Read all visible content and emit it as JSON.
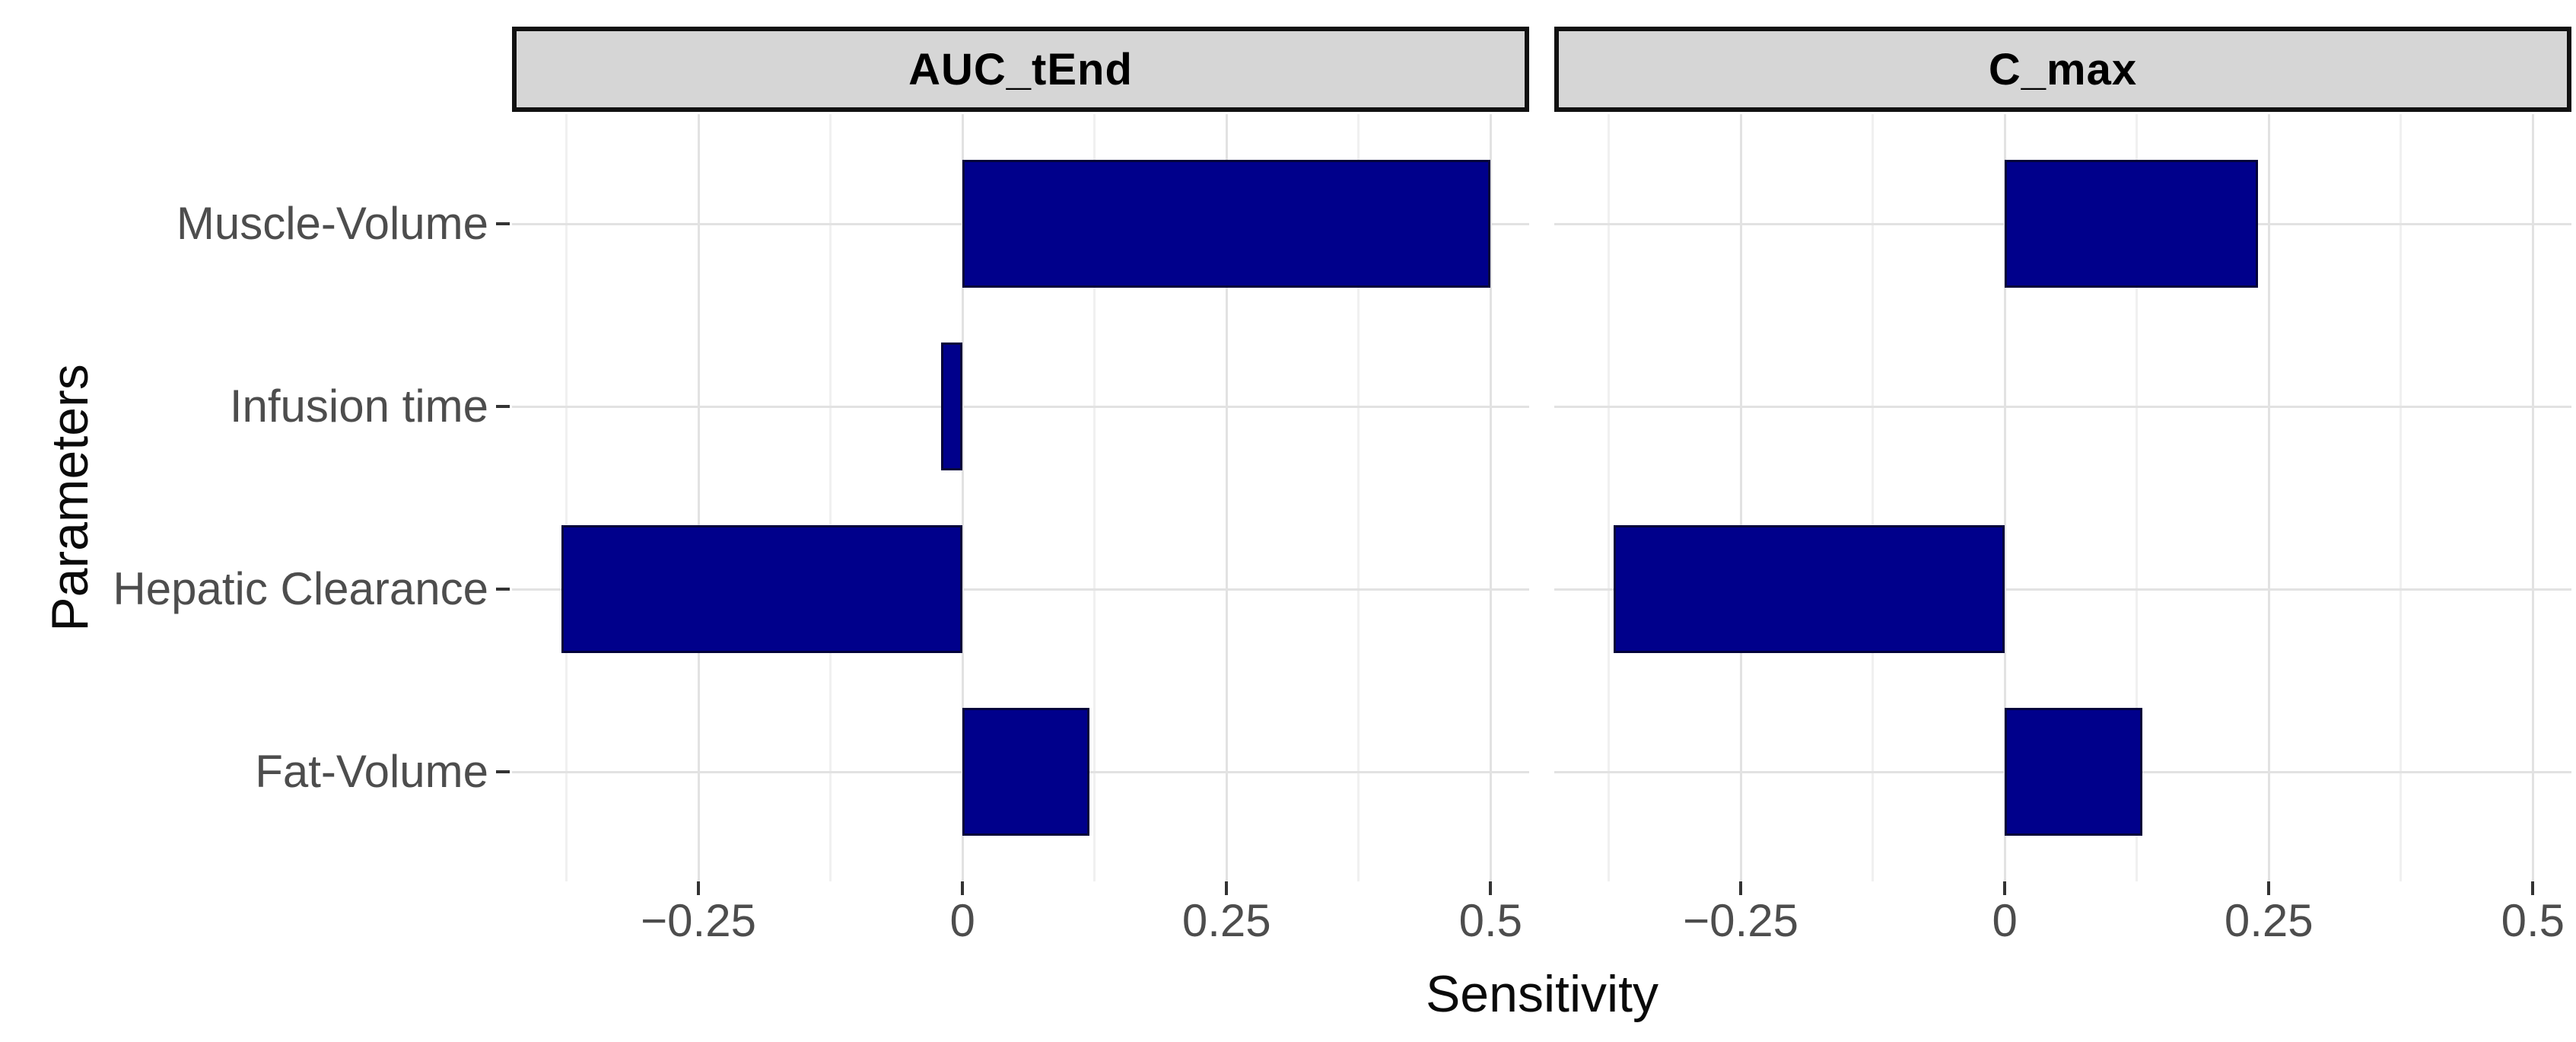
{
  "chart_data": {
    "type": "bar",
    "orientation": "horizontal",
    "title": "",
    "xlabel": "Sensitivity",
    "ylabel": "Parameters",
    "categories": [
      "Muscle-Volume",
      "Infusion time",
      "Hepatic Clearance",
      "Fat-Volume"
    ],
    "facets": [
      {
        "label": "AUC_tEnd",
        "values": [
          0.5,
          -0.02,
          -0.38,
          0.12
        ]
      },
      {
        "label": "C_max",
        "values": [
          0.24,
          0.0,
          -0.37,
          0.13
        ]
      }
    ],
    "x_ticks": [
      -0.25,
      0,
      0.25,
      0.5
    ],
    "x_tick_labels": [
      "−0.25",
      "0",
      "0.25",
      "0.5"
    ],
    "x_minor_ticks": [
      -0.375,
      -0.125,
      0.125,
      0.375
    ],
    "xlim": [
      -0.4265,
      0.5365
    ],
    "legend": "none",
    "grid": true,
    "colors": {
      "bar_fill": "#00008B",
      "bar_border": "#02023a",
      "strip_fill": "#d6d6d6",
      "strip_border": "#111111",
      "grid_major": "#e2e2e2",
      "grid_minor": "#f0f0f0",
      "axis_text": "#4d4d4d",
      "axis_title": "#0a0a0a",
      "background": "#ffffff"
    }
  }
}
